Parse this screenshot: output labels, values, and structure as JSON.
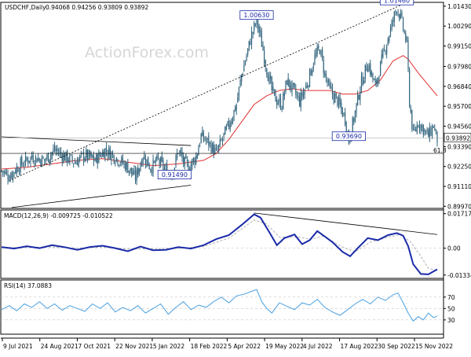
{
  "header": {
    "symbol": "USDCHF,Daily",
    "ohlc": "0.94068 0.94256 0.93809 0.93892"
  },
  "watermark": "ActionForex.com",
  "colors": {
    "candle": "#34667f",
    "ma_slow": "#e03030",
    "macd": "#1a2aa8",
    "macd_signal": "#b0b0b0",
    "rsi": "#4aa0e0",
    "trendline": "#000000",
    "callout_border": "#1a2aa8"
  },
  "chart_data": [
    {
      "type": "candlestick",
      "title": "USDCHF,Daily",
      "y_ticks": [
        "1.01430",
        "1.00290",
        "0.99150",
        "0.97980",
        "0.96840",
        "0.95700",
        "0.94560",
        "0.93390",
        "0.92250",
        "0.91110",
        "0.89970"
      ],
      "ylim": [
        0.8985,
        1.0165
      ],
      "last_price": "0.93892",
      "last_price_value": 0.93892,
      "x_labels": [
        "9 Jul 2021",
        "24 Aug 2021",
        "7 Oct 2021",
        "22 Nov 2021",
        "5 Jan 2022",
        "18 Feb 2022",
        "5 Apr 2022",
        "19 May 2022",
        "4 Jul 2022",
        "17 Aug 2022",
        "30 Sep 2022",
        "15 Nov 2022"
      ],
      "price_path": [
        [
          0,
          0.92
        ],
        [
          6,
          0.917
        ],
        [
          14,
          0.923
        ],
        [
          24,
          0.928
        ],
        [
          34,
          0.926
        ],
        [
          42,
          0.932
        ],
        [
          50,
          0.928
        ],
        [
          58,
          0.925
        ],
        [
          66,
          0.929
        ],
        [
          74,
          0.926
        ],
        [
          82,
          0.932
        ],
        [
          90,
          0.928
        ],
        [
          100,
          0.922
        ],
        [
          106,
          0.916
        ],
        [
          112,
          0.929
        ],
        [
          118,
          0.922
        ],
        [
          124,
          0.926
        ],
        [
          132,
          0.918
        ],
        [
          136,
          0.92
        ],
        [
          140,
          0.932
        ],
        [
          144,
          0.925
        ],
        [
          148,
          0.922
        ],
        [
          154,
          0.928
        ],
        [
          158,
          0.94
        ],
        [
          164,
          0.936
        ],
        [
          170,
          0.93
        ],
        [
          176,
          0.94
        ],
        [
          182,
          0.95
        ],
        [
          186,
          0.958
        ],
        [
          190,
          0.975
        ],
        [
          194,
          0.986
        ],
        [
          198,
          0.998
        ],
        [
          202,
          1.006
        ],
        [
          206,
          0.993
        ],
        [
          210,
          0.978
        ],
        [
          214,
          0.966
        ],
        [
          218,
          0.96
        ],
        [
          222,
          0.958
        ],
        [
          226,
          0.972
        ],
        [
          230,
          0.967
        ],
        [
          236,
          0.96
        ],
        [
          242,
          0.97
        ],
        [
          248,
          0.985
        ],
        [
          252,
          0.99
        ],
        [
          256,
          0.975
        ],
        [
          260,
          0.966
        ],
        [
          266,
          0.96
        ],
        [
          272,
          0.95
        ],
        [
          275,
          0.937
        ],
        [
          279,
          0.95
        ],
        [
          284,
          0.968
        ],
        [
          290,
          0.982
        ],
        [
          296,
          0.968
        ],
        [
          302,
          0.986
        ],
        [
          308,
          1.001
        ],
        [
          313,
          1.014
        ],
        [
          317,
          1.005
        ],
        [
          321,
          0.992
        ],
        [
          323,
          0.96
        ],
        [
          326,
          0.94
        ],
        [
          330,
          0.948
        ],
        [
          334,
          0.944
        ],
        [
          338,
          0.94
        ],
        [
          342,
          0.946
        ],
        [
          345,
          0.938
        ]
      ],
      "ma_slow": [
        [
          0,
          0.921
        ],
        [
          20,
          0.922
        ],
        [
          40,
          0.924
        ],
        [
          60,
          0.926
        ],
        [
          80,
          0.927
        ],
        [
          100,
          0.925
        ],
        [
          120,
          0.923
        ],
        [
          140,
          0.924
        ],
        [
          160,
          0.926
        ],
        [
          170,
          0.93
        ],
        [
          180,
          0.938
        ],
        [
          190,
          0.948
        ],
        [
          200,
          0.958
        ],
        [
          210,
          0.963
        ],
        [
          220,
          0.966
        ],
        [
          230,
          0.967
        ],
        [
          240,
          0.966
        ],
        [
          250,
          0.966
        ],
        [
          260,
          0.966
        ],
        [
          270,
          0.964
        ],
        [
          280,
          0.964
        ],
        [
          290,
          0.966
        ],
        [
          300,
          0.972
        ],
        [
          310,
          0.983
        ],
        [
          318,
          0.986
        ],
        [
          322,
          0.984
        ],
        [
          330,
          0.976
        ],
        [
          345,
          0.963
        ]
      ],
      "callouts": [
        {
          "label": "1.00630",
          "x": 202,
          "y": 1.0063
        },
        {
          "label": "1.01460",
          "x": 313,
          "y": 1.0146
        },
        {
          "label": "0.93690",
          "x": 275,
          "y": 0.9369
        },
        {
          "label": "0.91490",
          "x": 137,
          "y": 0.9149
        }
      ],
      "fib_label": "61.8",
      "fib_level": 0.93,
      "trendlines": [
        {
          "x1": 0,
          "y1": 0.9395,
          "x2": 150,
          "y2": 0.9345
        },
        {
          "x1": 8,
          "y1": 0.899,
          "x2": 150,
          "y2": 0.9118
        },
        {
          "x1": 8,
          "y1": 0.915,
          "x2": 318,
          "y2": 1.0155
        }
      ]
    },
    {
      "type": "line",
      "title": "MACD(12,26,9) -0.009725 -0.010522",
      "y_ticks": [
        "0.01717",
        "0.00",
        "-0.01334"
      ],
      "ylim": [
        -0.015,
        0.019
      ],
      "macd": [
        [
          0,
          0.0005
        ],
        [
          10,
          -0.0002
        ],
        [
          20,
          0.001
        ],
        [
          30,
          0.0
        ],
        [
          40,
          0.0015
        ],
        [
          50,
          0.0005
        ],
        [
          60,
          -0.0008
        ],
        [
          70,
          0.0006
        ],
        [
          80,
          0.0012
        ],
        [
          90,
          0.0
        ],
        [
          100,
          -0.0015
        ],
        [
          110,
          0.0008
        ],
        [
          120,
          -0.001
        ],
        [
          130,
          -0.0008
        ],
        [
          140,
          0.0005
        ],
        [
          150,
          -0.0002
        ],
        [
          160,
          0.0015
        ],
        [
          170,
          0.0045
        ],
        [
          180,
          0.0065
        ],
        [
          190,
          0.0115
        ],
        [
          200,
          0.0168
        ],
        [
          205,
          0.0152
        ],
        [
          212,
          0.008
        ],
        [
          218,
          0.0015
        ],
        [
          224,
          0.005
        ],
        [
          232,
          0.0068
        ],
        [
          238,
          0.002
        ],
        [
          244,
          0.004
        ],
        [
          250,
          0.0085
        ],
        [
          256,
          0.0058
        ],
        [
          262,
          0.003
        ],
        [
          270,
          -0.0018
        ],
        [
          276,
          -0.004
        ],
        [
          282,
          0.0
        ],
        [
          290,
          0.005
        ],
        [
          298,
          0.004
        ],
        [
          306,
          0.0065
        ],
        [
          313,
          0.0075
        ],
        [
          318,
          0.0062
        ],
        [
          322,
          0.001
        ],
        [
          326,
          -0.008
        ],
        [
          332,
          -0.0128
        ],
        [
          338,
          -0.013
        ],
        [
          345,
          -0.0105
        ]
      ],
      "signal": [
        [
          0,
          0.0003
        ],
        [
          20,
          0.0004
        ],
        [
          40,
          0.0006
        ],
        [
          60,
          0.0
        ],
        [
          80,
          0.0006
        ],
        [
          100,
          -0.0004
        ],
        [
          120,
          -0.0003
        ],
        [
          140,
          0.0
        ],
        [
          160,
          0.0008
        ],
        [
          180,
          0.005
        ],
        [
          200,
          0.014
        ],
        [
          210,
          0.012
        ],
        [
          220,
          0.0055
        ],
        [
          235,
          0.0055
        ],
        [
          245,
          0.0045
        ],
        [
          255,
          0.006
        ],
        [
          270,
          0.0005
        ],
        [
          280,
          -0.0018
        ],
        [
          292,
          0.003
        ],
        [
          306,
          0.0055
        ],
        [
          316,
          0.0068
        ],
        [
          324,
          0.003
        ],
        [
          332,
          -0.004
        ],
        [
          338,
          -0.01
        ],
        [
          345,
          -0.011
        ]
      ],
      "trendline": {
        "x1": 200,
        "y1": 0.0175,
        "x2": 345,
        "y2": 0.0068
      }
    },
    {
      "type": "line",
      "title": "RSI(14) 37.0883",
      "y_ticks": [
        "70",
        "50",
        "30"
      ],
      "ylim": [
        5,
        100
      ],
      "rsi": [
        [
          0,
          48
        ],
        [
          6,
          55
        ],
        [
          12,
          46
        ],
        [
          18,
          58
        ],
        [
          24,
          52
        ],
        [
          30,
          62
        ],
        [
          36,
          50
        ],
        [
          42,
          58
        ],
        [
          48,
          47
        ],
        [
          54,
          55
        ],
        [
          60,
          50
        ],
        [
          66,
          45
        ],
        [
          72,
          58
        ],
        [
          78,
          50
        ],
        [
          84,
          60
        ],
        [
          90,
          44
        ],
        [
          96,
          52
        ],
        [
          102,
          46
        ],
        [
          108,
          55
        ],
        [
          114,
          42
        ],
        [
          120,
          50
        ],
        [
          126,
          58
        ],
        [
          132,
          40
        ],
        [
          138,
          52
        ],
        [
          144,
          62
        ],
        [
          150,
          48
        ],
        [
          156,
          56
        ],
        [
          162,
          52
        ],
        [
          168,
          62
        ],
        [
          174,
          70
        ],
        [
          180,
          60
        ],
        [
          186,
          72
        ],
        [
          192,
          75
        ],
        [
          198,
          80
        ],
        [
          202,
          83
        ],
        [
          206,
          62
        ],
        [
          210,
          50
        ],
        [
          214,
          42
        ],
        [
          220,
          60
        ],
        [
          226,
          54
        ],
        [
          232,
          48
        ],
        [
          238,
          60
        ],
        [
          244,
          56
        ],
        [
          250,
          66
        ],
        [
          256,
          52
        ],
        [
          262,
          44
        ],
        [
          268,
          38
        ],
        [
          274,
          48
        ],
        [
          280,
          58
        ],
        [
          286,
          66
        ],
        [
          292,
          58
        ],
        [
          298,
          70
        ],
        [
          304,
          64
        ],
        [
          310,
          74
        ],
        [
          314,
          77
        ],
        [
          318,
          60
        ],
        [
          322,
          42
        ],
        [
          326,
          28
        ],
        [
          330,
          36
        ],
        [
          334,
          30
        ],
        [
          338,
          42
        ],
        [
          342,
          34
        ],
        [
          345,
          37
        ]
      ]
    }
  ]
}
